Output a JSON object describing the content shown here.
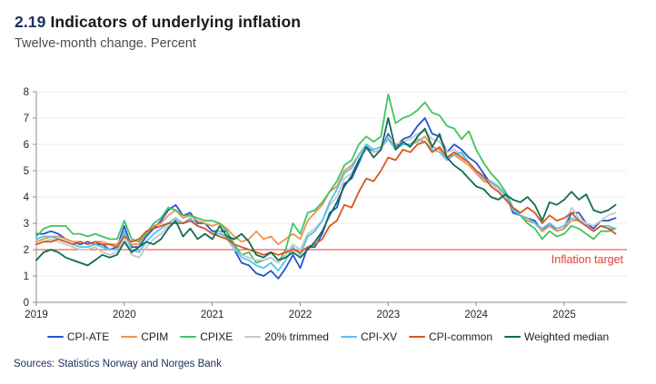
{
  "header": {
    "number": "2.19",
    "title": "Indicators of underlying inflation",
    "subtitle": "Twelve-month change. Percent"
  },
  "footer": {
    "sources": "Sources: Statistics Norway and Norges Bank"
  },
  "colors": {
    "figure_number": "#1d3160",
    "target_red": "#e63c32",
    "grid": "#ebebeb",
    "axis": "#8c8c8c",
    "tick_text": "#262626"
  },
  "chart_data": {
    "type": "line",
    "title": "2.19 Indicators of underlying inflation",
    "subtitle": "Twelve-month change. Percent",
    "xlabel": "",
    "ylabel": "",
    "ylim": [
      0,
      8
    ],
    "y_ticks": [
      0,
      1,
      2,
      3,
      4,
      5,
      6,
      7,
      8
    ],
    "x_tick_labels": [
      "2019",
      "2020",
      "2021",
      "2022",
      "2023",
      "2024",
      "2025"
    ],
    "x_start": "2019-01",
    "x_end": "2025-08",
    "points_per_year": 12,
    "grid": "horizontal",
    "legend_position": "bottom",
    "target_line": {
      "value": 2,
      "label": "Inflation target",
      "color": "#e63c32"
    },
    "series": [
      {
        "name": "CPI-ATE",
        "color": "#2256d2",
        "values": [
          2.6,
          2.6,
          2.7,
          2.6,
          2.4,
          2.3,
          2.2,
          2.3,
          2.2,
          2.2,
          2.0,
          2.1,
          2.9,
          2.1,
          2.1,
          2.5,
          2.8,
          3.1,
          3.5,
          3.7,
          3.3,
          3.4,
          3.0,
          3.0,
          2.7,
          2.7,
          2.7,
          2.0,
          1.5,
          1.4,
          1.1,
          1.0,
          1.2,
          0.9,
          1.3,
          1.8,
          1.3,
          2.1,
          2.1,
          2.6,
          3.4,
          3.6,
          4.5,
          4.7,
          5.3,
          5.9,
          5.7,
          5.8,
          6.4,
          5.9,
          6.2,
          6.3,
          6.7,
          7.0,
          6.4,
          6.3,
          5.7,
          6.0,
          5.8,
          5.5,
          5.3,
          4.9,
          4.5,
          4.4,
          4.1,
          3.4,
          3.3,
          3.2,
          3.1,
          2.7,
          3.0,
          2.7,
          2.8,
          3.4,
          3.4,
          3.0,
          2.8,
          3.1,
          3.1,
          3.2
        ]
      },
      {
        "name": "CPIM",
        "color": "#ef9350",
        "values": [
          2.3,
          2.4,
          2.5,
          2.5,
          2.4,
          2.3,
          2.3,
          2.2,
          2.3,
          2.3,
          2.2,
          2.2,
          2.6,
          2.2,
          2.2,
          2.6,
          2.9,
          3.0,
          3.3,
          3.5,
          3.2,
          3.3,
          3.1,
          3.0,
          2.9,
          3.0,
          2.8,
          2.5,
          2.3,
          2.4,
          2.7,
          2.4,
          2.5,
          2.2,
          2.4,
          2.6,
          2.4,
          3.1,
          3.4,
          3.7,
          4.2,
          4.4,
          5.0,
          5.2,
          5.6,
          6.0,
          5.8,
          5.9,
          6.2,
          5.9,
          6.0,
          6.0,
          6.1,
          6.3,
          5.9,
          5.8,
          5.5,
          5.6,
          5.4,
          5.2,
          4.9,
          4.6,
          4.5,
          4.4,
          4.0,
          3.5,
          3.3,
          3.1,
          3.0,
          2.7,
          2.9,
          2.7,
          2.8,
          3.1,
          3.1,
          2.9,
          2.7,
          2.9,
          2.8,
          2.8
        ]
      },
      {
        "name": "CPIXE",
        "color": "#42c45f",
        "values": [
          2.5,
          2.8,
          2.9,
          2.9,
          2.9,
          2.6,
          2.6,
          2.5,
          2.6,
          2.5,
          2.4,
          2.4,
          3.1,
          2.4,
          2.3,
          2.6,
          3.0,
          3.2,
          3.6,
          3.5,
          3.3,
          3.3,
          3.2,
          3.1,
          3.1,
          3.0,
          2.7,
          2.2,
          1.8,
          1.9,
          1.5,
          1.6,
          1.7,
          1.5,
          2.0,
          3.0,
          2.6,
          3.4,
          3.5,
          3.8,
          4.2,
          4.6,
          5.2,
          5.4,
          6.0,
          6.3,
          6.1,
          6.3,
          7.9,
          6.8,
          7.0,
          7.1,
          7.3,
          7.6,
          7.2,
          7.1,
          6.7,
          6.6,
          6.2,
          6.5,
          5.8,
          5.3,
          4.9,
          4.6,
          4.2,
          3.6,
          3.3,
          3.0,
          2.8,
          2.4,
          2.7,
          2.5,
          2.6,
          2.9,
          2.8,
          2.6,
          2.4,
          2.7,
          2.7,
          2.8
        ]
      },
      {
        "name": "20% trimmed",
        "color": "#c6c8ca",
        "values": [
          2.2,
          2.3,
          2.4,
          2.3,
          2.2,
          2.1,
          2.0,
          2.0,
          2.1,
          1.9,
          1.8,
          1.9,
          2.5,
          1.8,
          1.7,
          2.1,
          2.4,
          2.6,
          2.9,
          3.1,
          3.0,
          3.1,
          2.9,
          2.8,
          2.6,
          2.7,
          2.4,
          2.0,
          1.8,
          1.7,
          1.6,
          1.6,
          1.7,
          1.5,
          1.8,
          2.2,
          2.0,
          2.6,
          2.8,
          3.1,
          3.7,
          4.0,
          4.7,
          4.9,
          5.4,
          5.8,
          5.7,
          5.8,
          6.3,
          6.0,
          6.1,
          6.2,
          6.4,
          6.5,
          6.2,
          6.1,
          5.7,
          5.8,
          5.6,
          5.3,
          5.0,
          4.7,
          4.5,
          4.3,
          4.0,
          3.5,
          3.3,
          3.2,
          3.0,
          2.8,
          3.0,
          2.8,
          2.9,
          3.6,
          3.2,
          3.0,
          2.9,
          3.1,
          3.3,
          3.4
        ]
      },
      {
        "name": "CPI-XV",
        "color": "#55c3e9",
        "values": [
          2.4,
          2.5,
          2.5,
          2.4,
          2.3,
          2.2,
          2.1,
          2.1,
          2.2,
          2.1,
          2.0,
          2.0,
          2.7,
          2.0,
          1.9,
          2.3,
          2.6,
          2.8,
          3.0,
          3.2,
          3.0,
          3.2,
          2.9,
          2.8,
          2.6,
          2.6,
          2.5,
          2.1,
          1.7,
          1.6,
          1.4,
          1.3,
          1.5,
          1.2,
          1.6,
          2.1,
          1.8,
          2.5,
          2.7,
          3.1,
          3.8,
          4.3,
          4.9,
          5.1,
          5.6,
          6.0,
          5.8,
          5.9,
          6.2,
          5.8,
          6.0,
          6.0,
          6.2,
          6.1,
          5.8,
          5.7,
          5.4,
          5.6,
          5.7,
          5.3,
          5.0,
          4.7,
          4.6,
          4.4,
          4.1,
          3.5,
          3.3,
          3.2,
          3.0,
          2.8,
          3.0,
          2.8,
          2.9,
          3.2,
          3.1,
          2.9,
          2.7,
          2.9,
          2.9,
          2.8
        ]
      },
      {
        "name": "CPI-common",
        "color": "#d2591f",
        "values": [
          2.2,
          2.3,
          2.3,
          2.4,
          2.3,
          2.2,
          2.3,
          2.2,
          2.3,
          2.2,
          2.2,
          2.1,
          2.5,
          2.3,
          2.4,
          2.7,
          2.8,
          2.9,
          3.0,
          3.0,
          3.0,
          3.1,
          2.9,
          2.8,
          2.6,
          2.5,
          2.4,
          2.2,
          2.1,
          2.0,
          1.9,
          1.8,
          1.9,
          1.8,
          1.9,
          2.0,
          1.9,
          2.1,
          2.2,
          2.4,
          2.9,
          3.1,
          3.7,
          3.6,
          4.2,
          4.7,
          4.6,
          5.0,
          5.5,
          5.4,
          5.8,
          5.7,
          6.0,
          6.1,
          5.7,
          5.9,
          5.5,
          5.7,
          5.5,
          5.3,
          5.0,
          4.8,
          4.4,
          4.2,
          3.9,
          3.6,
          3.4,
          3.6,
          3.4,
          3.0,
          3.3,
          3.1,
          3.2,
          3.4,
          3.1,
          2.9,
          2.7,
          2.9,
          2.8,
          2.6
        ]
      },
      {
        "name": "Weighted median",
        "color": "#0f6b52",
        "values": [
          1.6,
          1.9,
          2.0,
          1.9,
          1.7,
          1.6,
          1.5,
          1.4,
          1.6,
          1.8,
          1.7,
          1.8,
          2.3,
          1.9,
          2.1,
          2.3,
          2.2,
          2.4,
          2.8,
          3.1,
          2.5,
          2.8,
          2.4,
          2.6,
          2.4,
          2.9,
          2.5,
          2.4,
          2.6,
          2.3,
          1.8,
          1.7,
          1.9,
          1.6,
          1.7,
          1.9,
          1.7,
          2.0,
          2.3,
          2.7,
          3.3,
          3.8,
          4.4,
          4.8,
          5.4,
          5.9,
          5.5,
          5.8,
          7.0,
          5.8,
          6.1,
          5.9,
          6.3,
          6.6,
          5.9,
          6.4,
          5.5,
          5.2,
          5.0,
          4.7,
          4.4,
          4.3,
          4.0,
          3.9,
          4.1,
          3.9,
          3.8,
          4.0,
          3.7,
          3.1,
          3.8,
          3.7,
          3.9,
          4.2,
          3.9,
          4.1,
          3.5,
          3.4,
          3.5,
          3.7
        ]
      }
    ]
  }
}
